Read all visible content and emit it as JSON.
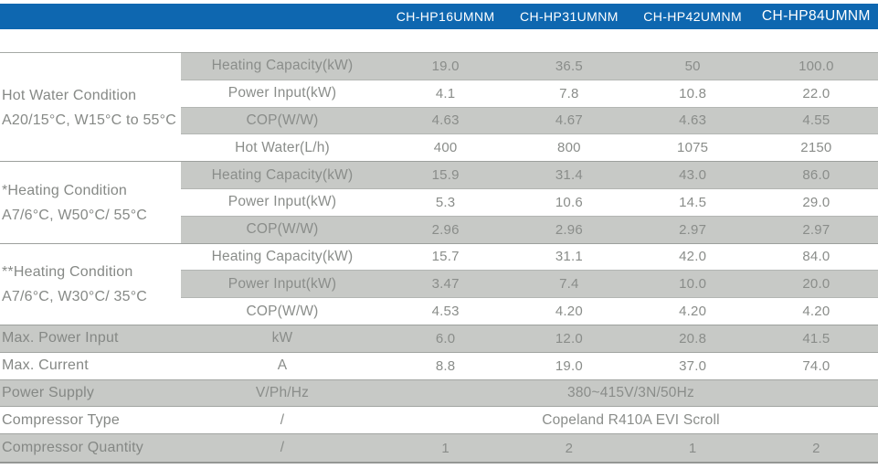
{
  "header": {
    "models": [
      "CH-HP16UMNM",
      "CH-HP31UMNM",
      "CH-HP42UMNM",
      "CH-HP84UMNM"
    ]
  },
  "colors": {
    "header_blue": "#0e67b0",
    "row_gray": "#c7c9c6",
    "text_gray": "#8a8d8a"
  },
  "table": {
    "sections": [
      {
        "label_line1": "Hot Water Condition",
        "label_line2": "A20/15°C, W15°C to 55°C",
        "rows": [
          {
            "param": "Heating Capacity(kW)",
            "values": [
              "19.0",
              "36.5",
              "50",
              "100.0"
            ]
          },
          {
            "param": "Power Input(kW)",
            "values": [
              "4.1",
              "7.8",
              "10.8",
              "22.0"
            ]
          },
          {
            "param": "COP(W/W)",
            "values": [
              "4.63",
              "4.67",
              "4.63",
              "4.55"
            ]
          },
          {
            "param": "Hot Water(L/h)",
            "values": [
              "400",
              "800",
              "1075",
              "2150"
            ]
          }
        ]
      },
      {
        "label_line1": "*Heating Condition",
        "label_line2": "A7/6°C, W50°C/ 55°C",
        "rows": [
          {
            "param": "Heating Capacity(kW)",
            "values": [
              "15.9",
              "31.4",
              "43.0",
              "86.0"
            ]
          },
          {
            "param": "Power Input(kW)",
            "values": [
              "5.3",
              "10.6",
              "14.5",
              "29.0"
            ]
          },
          {
            "param": "COP(W/W)",
            "values": [
              "2.96",
              "2.96",
              "2.97",
              "2.97"
            ]
          }
        ]
      },
      {
        "label_line1": "**Heating Condition",
        "label_line2": "A7/6°C, W30°C/ 35°C",
        "rows": [
          {
            "param": "Heating Capacity(kW)",
            "values": [
              "15.7",
              "31.1",
              "42.0",
              "84.0"
            ]
          },
          {
            "param": "Power Input(kW)",
            "values": [
              "3.47",
              "7.4",
              "10.0",
              "20.0"
            ]
          },
          {
            "param": "COP(W/W)",
            "values": [
              "4.53",
              "4.20",
              "4.20",
              "4.20"
            ]
          }
        ]
      }
    ],
    "bottom_rows": [
      {
        "label": "Max. Power Input",
        "unit": "kW",
        "values": [
          "6.0",
          "12.0",
          "20.8",
          "41.5"
        ]
      },
      {
        "label": "Max. Current",
        "unit": "A",
        "values": [
          "8.8",
          "19.0",
          "37.0",
          "74.0"
        ]
      },
      {
        "label": "Power Supply",
        "unit": "V/Ph/Hz",
        "span_value": "380~415V/3N/50Hz"
      },
      {
        "label": "Compressor Type",
        "unit": "/",
        "span_value": "Copeland R410A EVI Scroll"
      },
      {
        "label": "Compressor Quantity",
        "unit": "/",
        "values": [
          "1",
          "2",
          "1",
          "2"
        ]
      }
    ]
  }
}
